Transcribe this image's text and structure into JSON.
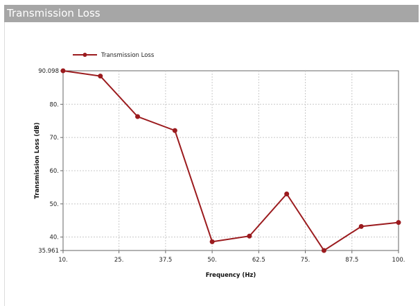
{
  "panel": {
    "title": "Transmission Loss"
  },
  "colors": {
    "series": "#9b1b1e",
    "header_bg": "#a6a6a6",
    "grid": "#c8c8c8"
  },
  "chart_data": {
    "type": "line",
    "title": "",
    "xlabel": "Frequency (Hz)",
    "ylabel": "Transmission Loss (dB)",
    "xlim": [
      10,
      100
    ],
    "ylim": [
      35.961,
      90.098
    ],
    "x_ticks": [
      10,
      25,
      37.5,
      50,
      62.5,
      75,
      87.5,
      100
    ],
    "x_tick_labels": [
      "10.",
      "25.",
      "37.5",
      "50.",
      "62.5",
      "75.",
      "87.5",
      "100."
    ],
    "y_ticks": [
      35.961,
      40,
      50,
      60,
      70,
      80,
      90.098
    ],
    "y_tick_labels": [
      "35.961",
      "40.",
      "50.",
      "60.",
      "70.",
      "80.",
      "90.098"
    ],
    "grid": true,
    "legend_position": "top-left",
    "series": [
      {
        "name": "Transmission Loss",
        "x": [
          10,
          20,
          30,
          40,
          50,
          60,
          70,
          80,
          90,
          100
        ],
        "y": [
          90.098,
          88.5,
          76.3,
          72.1,
          38.6,
          40.3,
          53.0,
          35.961,
          43.2,
          44.4
        ]
      }
    ]
  }
}
